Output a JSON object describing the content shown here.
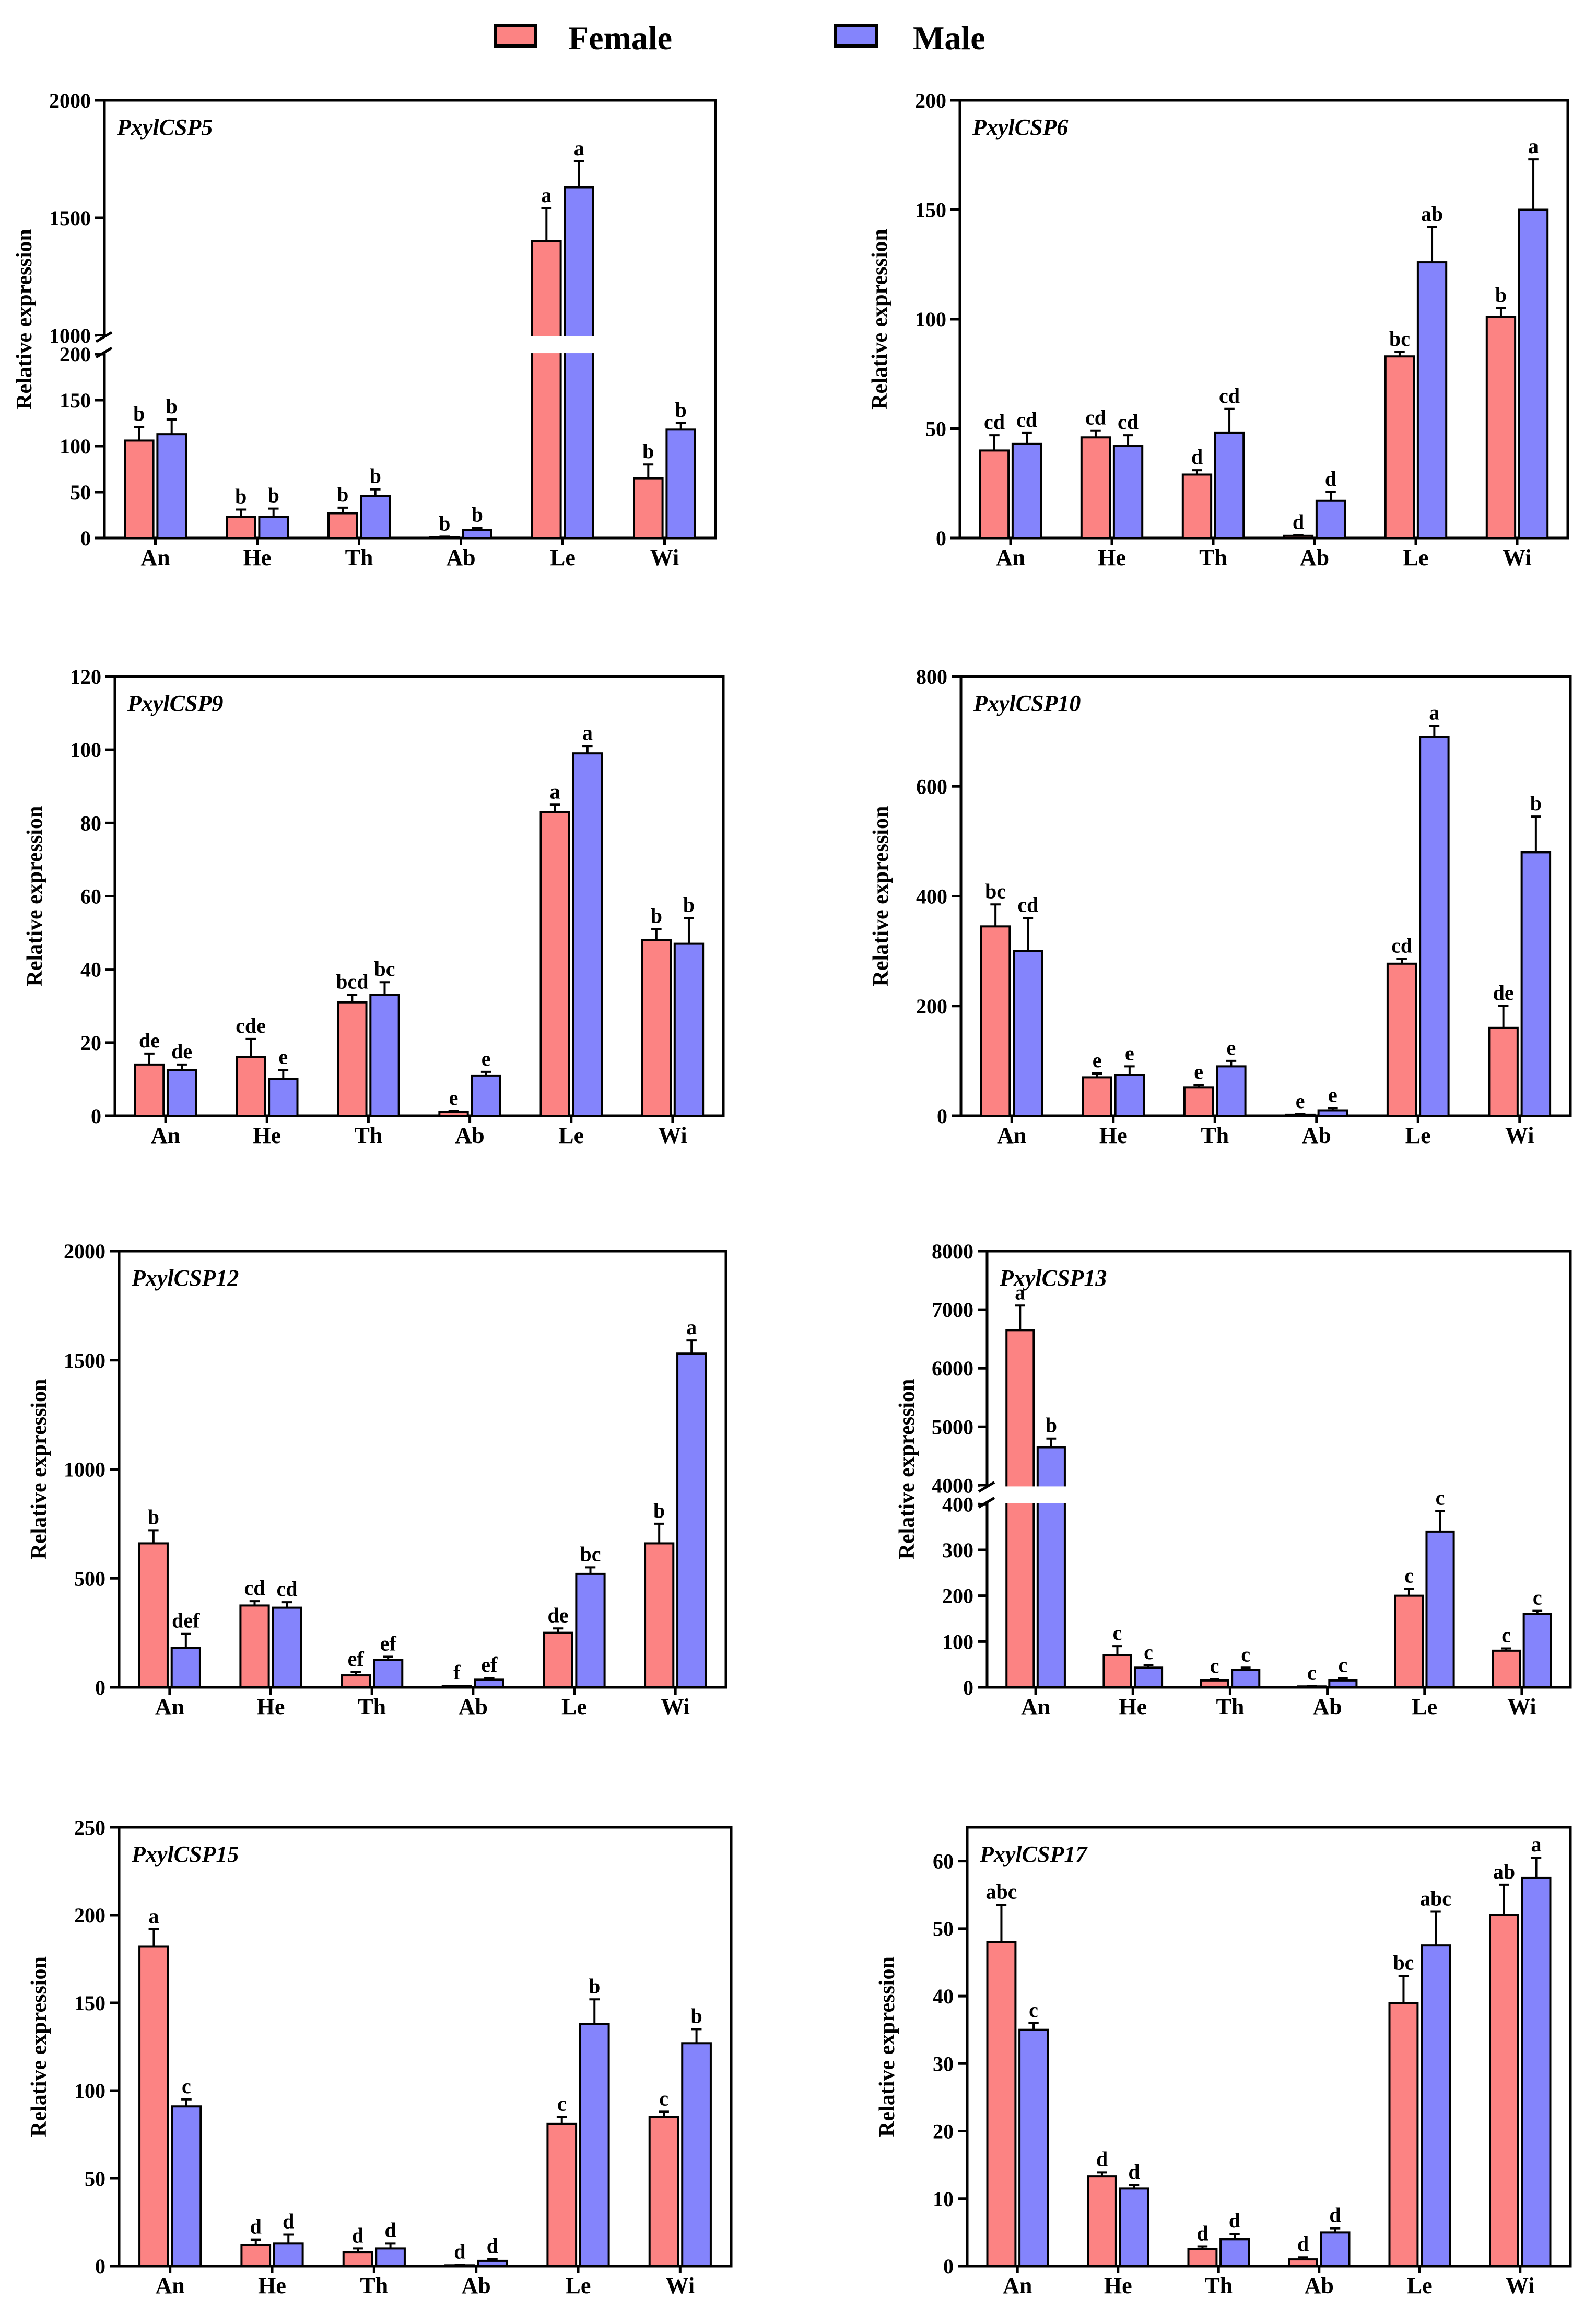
{
  "legend": {
    "female": {
      "label": "Female",
      "color": "#fc8383"
    },
    "male": {
      "label": "Male",
      "color": "#8484fc"
    }
  },
  "chart_data": [
    {
      "type": "bar",
      "title": "PxylCSP5",
      "ylabel": "Relative expression",
      "categories": [
        "An",
        "He",
        "Th",
        "Ab",
        "Le",
        "Wi"
      ],
      "axis_break": {
        "lower": [
          0,
          200
        ],
        "upper": [
          1000,
          2000
        ]
      },
      "lower_ticks": [
        0,
        50,
        100,
        150,
        200
      ],
      "upper_ticks": [
        1000,
        1500,
        2000
      ],
      "series": [
        {
          "name": "Female",
          "values": [
            106,
            23,
            27,
            1,
            1400,
            65
          ],
          "errors": [
            15,
            8,
            6,
            0.5,
            140,
            15
          ],
          "letters": [
            "b",
            "b",
            "b",
            "b",
            "a",
            "b"
          ]
        },
        {
          "name": "Male",
          "values": [
            113,
            23,
            46,
            9,
            1630,
            118
          ],
          "errors": [
            16,
            9,
            7,
            2,
            110,
            7
          ],
          "letters": [
            "b",
            "b",
            "b",
            "b",
            "a",
            "b"
          ]
        }
      ]
    },
    {
      "type": "bar",
      "title": "PxylCSP6",
      "ylabel": "Relative expression",
      "categories": [
        "An",
        "He",
        "Th",
        "Ab",
        "Le",
        "Wi"
      ],
      "ylim": [
        0,
        200
      ],
      "yticks": [
        0,
        50,
        100,
        150,
        200
      ],
      "series": [
        {
          "name": "Female",
          "values": [
            40,
            46,
            29,
            1,
            83,
            101
          ],
          "errors": [
            7,
            3,
            2,
            0.3,
            2,
            4
          ],
          "letters": [
            "cd",
            "cd",
            "d",
            "d",
            "bc",
            "b"
          ]
        },
        {
          "name": "Male",
          "values": [
            43,
            42,
            48,
            17,
            126,
            150
          ],
          "errors": [
            5,
            5,
            11,
            4,
            16,
            23
          ],
          "letters": [
            "cd",
            "cd",
            "cd",
            "d",
            "ab",
            "a"
          ]
        }
      ]
    },
    {
      "type": "bar",
      "title": "PxylCSP9",
      "ylabel": "Relative expression",
      "categories": [
        "An",
        "He",
        "Th",
        "Ab",
        "Le",
        "Wi"
      ],
      "ylim": [
        0,
        120
      ],
      "yticks": [
        0,
        20,
        40,
        60,
        80,
        100,
        120
      ],
      "series": [
        {
          "name": "Female",
          "values": [
            14,
            16,
            31,
            1,
            83,
            48
          ],
          "errors": [
            3,
            5,
            2,
            0.3,
            2,
            3
          ],
          "letters": [
            "de",
            "cde",
            "bcd",
            "e",
            "a",
            "b"
          ]
        },
        {
          "name": "Male",
          "values": [
            12.5,
            10,
            33,
            11,
            99,
            47
          ],
          "errors": [
            1.5,
            2.5,
            3.5,
            1,
            2,
            7
          ],
          "letters": [
            "de",
            "e",
            "bc",
            "e",
            "a",
            "b"
          ]
        }
      ]
    },
    {
      "type": "bar",
      "title": "PxylCSP10",
      "ylabel": "Relative expression",
      "categories": [
        "An",
        "He",
        "Th",
        "Ab",
        "Le",
        "Wi"
      ],
      "ylim": [
        0,
        800
      ],
      "yticks": [
        0,
        200,
        400,
        600,
        800
      ],
      "series": [
        {
          "name": "Female",
          "values": [
            345,
            70,
            52,
            2,
            277,
            160
          ],
          "errors": [
            40,
            7,
            4,
            1,
            9,
            40
          ],
          "letters": [
            "bc",
            "e",
            "e",
            "e",
            "cd",
            "de"
          ]
        },
        {
          "name": "Male",
          "values": [
            300,
            75,
            90,
            10,
            690,
            480
          ],
          "errors": [
            60,
            15,
            10,
            4,
            20,
            65
          ],
          "letters": [
            "cd",
            "e",
            "e",
            "e",
            "a",
            "b"
          ]
        }
      ]
    },
    {
      "type": "bar",
      "title": "PxylCSP12",
      "ylabel": "Relative expression",
      "categories": [
        "An",
        "He",
        "Th",
        "Ab",
        "Le",
        "Wi"
      ],
      "ylim": [
        0,
        2000
      ],
      "yticks": [
        0,
        500,
        1000,
        1500,
        2000
      ],
      "series": [
        {
          "name": "Female",
          "values": [
            660,
            375,
            55,
            5,
            250,
            660
          ],
          "errors": [
            60,
            20,
            15,
            2,
            20,
            90
          ],
          "letters": [
            "b",
            "cd",
            "ef",
            "f",
            "de",
            "b"
          ]
        },
        {
          "name": "Male",
          "values": [
            180,
            365,
            125,
            35,
            520,
            1530
          ],
          "errors": [
            65,
            25,
            15,
            8,
            30,
            60
          ],
          "letters": [
            "def",
            "cd",
            "ef",
            "ef",
            "bc",
            "a"
          ]
        }
      ]
    },
    {
      "type": "bar",
      "title": "PxylCSP13",
      "ylabel": "Relative expression",
      "categories": [
        "An",
        "He",
        "Th",
        "Ab",
        "Le",
        "Wi"
      ],
      "axis_break": {
        "lower": [
          0,
          400
        ],
        "upper": [
          4000,
          8000
        ]
      },
      "lower_ticks": [
        0,
        100,
        200,
        300,
        400
      ],
      "upper_ticks": [
        4000,
        5000,
        6000,
        7000,
        8000
      ],
      "series": [
        {
          "name": "Female",
          "values": [
            6650,
            70,
            15,
            2,
            200,
            80
          ],
          "errors": [
            420,
            20,
            3,
            1,
            15,
            5
          ],
          "letters": [
            "a",
            "c",
            "c",
            "c",
            "c",
            "c"
          ]
        },
        {
          "name": "Male",
          "values": [
            4650,
            43,
            38,
            15,
            340,
            160
          ],
          "errors": [
            150,
            5,
            5,
            5,
            45,
            7
          ],
          "letters": [
            "b",
            "c",
            "c",
            "c",
            "c",
            "c"
          ]
        }
      ]
    },
    {
      "type": "bar",
      "title": "PxylCSP15",
      "ylabel": "Relative expression",
      "categories": [
        "An",
        "He",
        "Th",
        "Ab",
        "Le",
        "Wi"
      ],
      "ylim": [
        0,
        250
      ],
      "yticks": [
        0,
        50,
        100,
        150,
        200,
        250
      ],
      "series": [
        {
          "name": "Female",
          "values": [
            182,
            12,
            8,
            0.5,
            81,
            85
          ],
          "errors": [
            10,
            3,
            2,
            0.2,
            4,
            3
          ],
          "letters": [
            "a",
            "d",
            "d",
            "d",
            "c",
            "c"
          ]
        },
        {
          "name": "Male",
          "values": [
            91,
            13,
            10,
            3,
            138,
            127
          ],
          "errors": [
            4,
            5,
            3,
            1,
            14,
            8
          ],
          "letters": [
            "c",
            "d",
            "d",
            "d",
            "b",
            "b"
          ]
        }
      ]
    },
    {
      "type": "bar",
      "title": "PxylCSP17",
      "ylabel": "Relative expression",
      "categories": [
        "An",
        "He",
        "Th",
        "Ab",
        "Le",
        "Wi"
      ],
      "ylim": [
        0,
        65
      ],
      "yticks": [
        0,
        10,
        20,
        30,
        40,
        50,
        60
      ],
      "series": [
        {
          "name": "Female",
          "values": [
            48,
            13.3,
            2.5,
            1,
            39,
            52
          ],
          "errors": [
            5.5,
            0.6,
            0.4,
            0.3,
            4,
            4.5
          ],
          "letters": [
            "abc",
            "d",
            "d",
            "d",
            "bc",
            "ab"
          ]
        },
        {
          "name": "Male",
          "values": [
            35,
            11.5,
            4,
            5,
            47.5,
            57.5
          ],
          "errors": [
            1,
            0.5,
            0.8,
            0.6,
            5,
            3
          ],
          "letters": [
            "c",
            "d",
            "d",
            "d",
            "abc",
            "a"
          ]
        }
      ]
    }
  ]
}
